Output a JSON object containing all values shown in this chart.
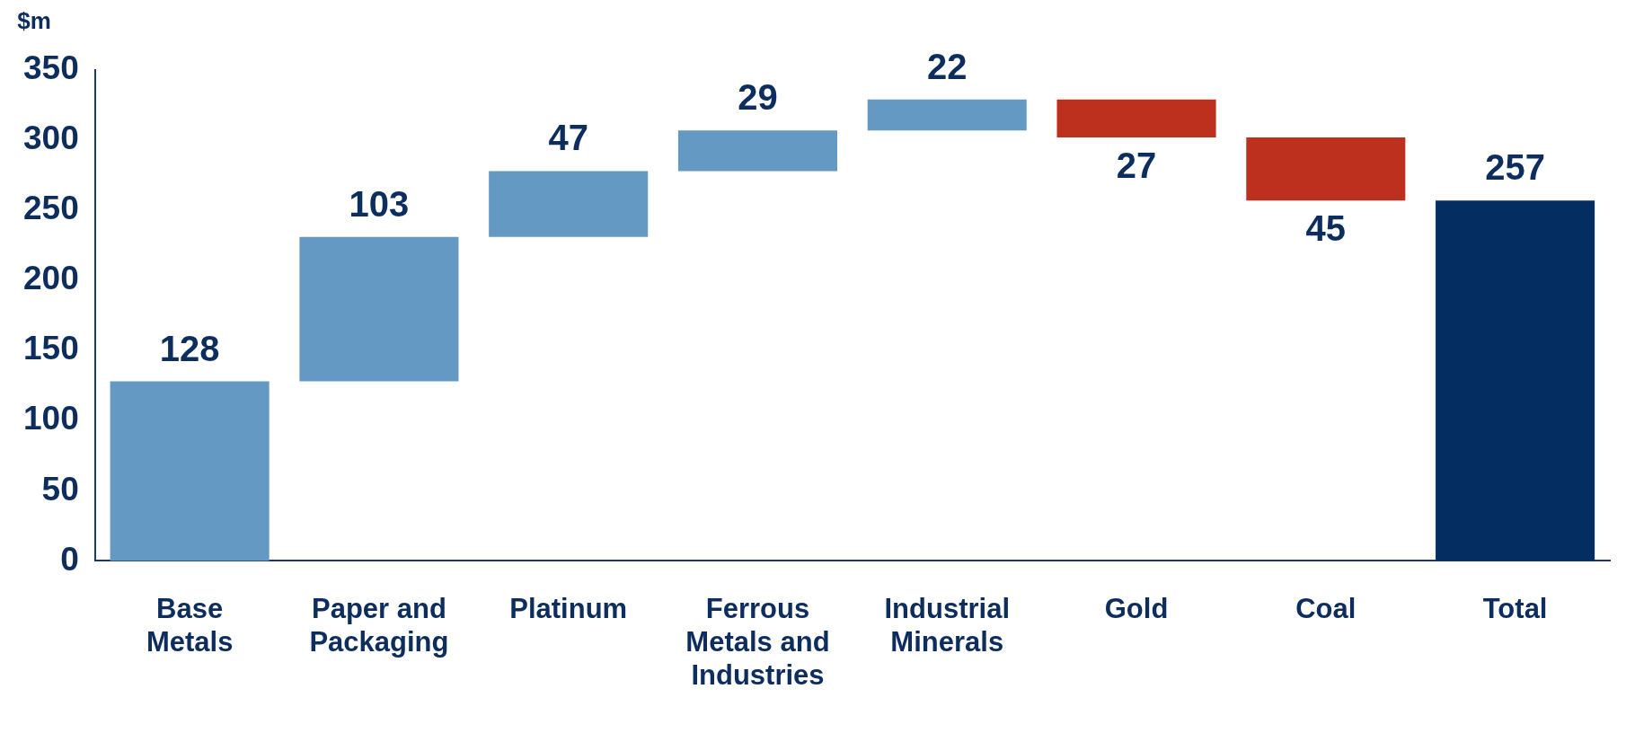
{
  "chart_data": {
    "type": "bar",
    "ylabel": "$m",
    "categories": [
      "Base Metals",
      "Paper and Packaging",
      "Platinum",
      "Ferrous Metals and Industries",
      "Industrial Minerals",
      "Gold",
      "Coal",
      "Total"
    ],
    "values": [
      128,
      103,
      47,
      29,
      22,
      -27,
      -45,
      257
    ],
    "base": [
      0,
      128,
      231,
      278,
      307,
      329,
      302,
      0
    ],
    "colors": [
      "#6399c2",
      "#6399c2",
      "#6399c2",
      "#6399c2",
      "#6399c2",
      "#bd301e",
      "#bd301e",
      "#042d62"
    ],
    "value_labels": [
      "128",
      "103",
      "47",
      "29",
      "22",
      "27",
      "45",
      "257"
    ],
    "ylim": [
      0,
      350
    ],
    "yticks": [
      0,
      50,
      100,
      150,
      200,
      250,
      300,
      350
    ]
  }
}
